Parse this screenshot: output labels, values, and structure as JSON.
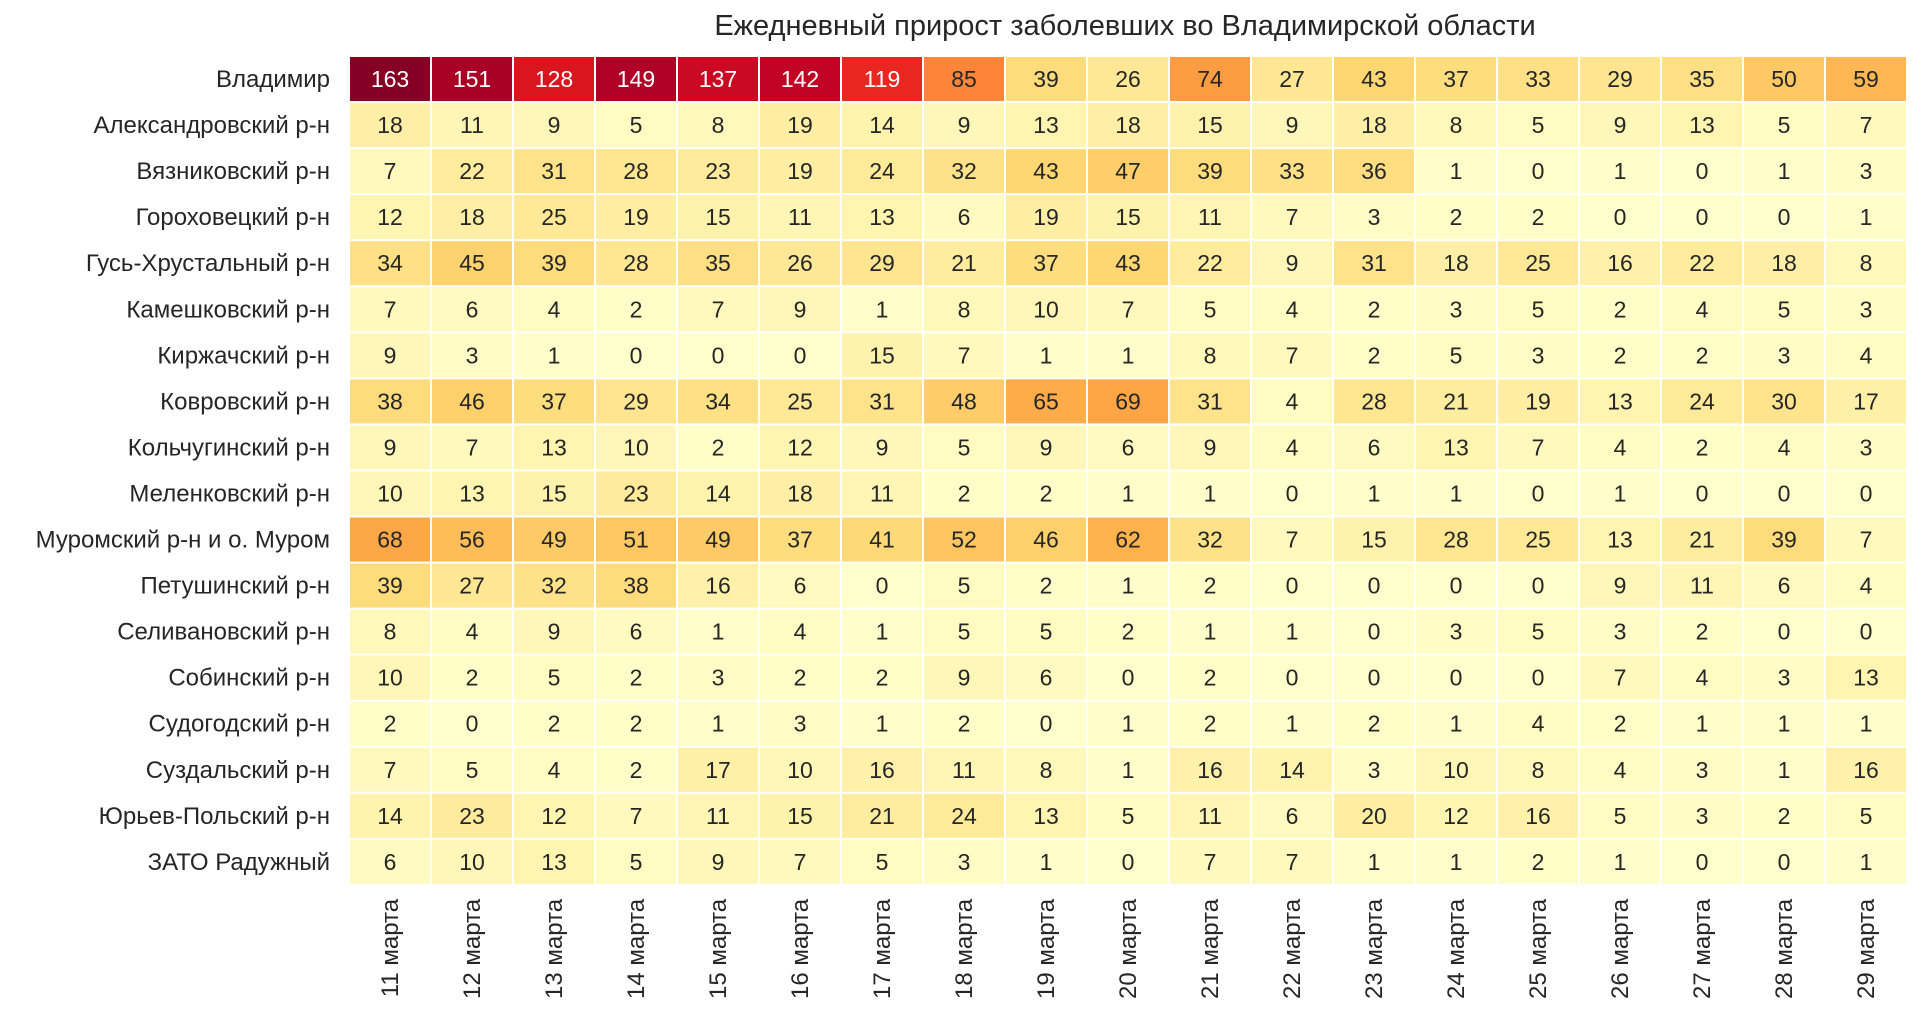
{
  "chart_data": {
    "type": "heatmap",
    "title": "Ежедневный прирост заболевших во Владимирской области",
    "xlabel": "",
    "ylabel": "",
    "colormap": "YlOrRd",
    "value_range": [
      0,
      165
    ],
    "columns": [
      "11 марта",
      "12 марта",
      "13 марта",
      "14 марта",
      "15 марта",
      "16 марта",
      "17 марта",
      "18 марта",
      "19 марта",
      "20 марта",
      "21 марта",
      "22 марта",
      "23 марта",
      "24 марта",
      "25 марта",
      "26 марта",
      "27 марта",
      "28 марта",
      "29 марта"
    ],
    "rows": [
      "Владимир",
      "Александровский р-н",
      "Вязниковский р-н",
      "Гороховецкий р-н",
      "Гусь-Хрустальный р-н",
      "Камешковский р-н",
      "Киржачский р-н",
      "Ковровский р-н",
      "Кольчугинский р-н",
      "Меленковский р-н",
      "Муромский р-н и о. Муром",
      "Петушинский р-н",
      "Селивановский р-н",
      "Собинский р-н",
      "Судогодский р-н",
      "Суздальский р-н",
      "Юрьев-Польский р-н",
      "ЗАТО Радужный"
    ],
    "values": [
      [
        163,
        151,
        128,
        149,
        137,
        142,
        119,
        85,
        39,
        26,
        74,
        27,
        43,
        37,
        33,
        29,
        35,
        50,
        59
      ],
      [
        18,
        11,
        9,
        5,
        8,
        19,
        14,
        9,
        13,
        18,
        15,
        9,
        18,
        8,
        5,
        9,
        13,
        5,
        7
      ],
      [
        7,
        22,
        31,
        28,
        23,
        19,
        24,
        32,
        43,
        47,
        39,
        33,
        36,
        1,
        0,
        1,
        0,
        1,
        3
      ],
      [
        12,
        18,
        25,
        19,
        15,
        11,
        13,
        6,
        19,
        15,
        11,
        7,
        3,
        2,
        2,
        0,
        0,
        0,
        1
      ],
      [
        34,
        45,
        39,
        28,
        35,
        26,
        29,
        21,
        37,
        43,
        22,
        9,
        31,
        18,
        25,
        16,
        22,
        18,
        8
      ],
      [
        7,
        6,
        4,
        2,
        7,
        9,
        1,
        8,
        10,
        7,
        5,
        4,
        2,
        3,
        5,
        2,
        4,
        5,
        3
      ],
      [
        9,
        3,
        1,
        0,
        0,
        0,
        15,
        7,
        1,
        1,
        8,
        7,
        2,
        5,
        3,
        2,
        2,
        3,
        4
      ],
      [
        38,
        46,
        37,
        29,
        34,
        25,
        31,
        48,
        65,
        69,
        31,
        4,
        28,
        21,
        19,
        13,
        24,
        30,
        17
      ],
      [
        9,
        7,
        13,
        10,
        2,
        12,
        9,
        5,
        9,
        6,
        9,
        4,
        6,
        13,
        7,
        4,
        2,
        4,
        3
      ],
      [
        10,
        13,
        15,
        23,
        14,
        18,
        11,
        2,
        2,
        1,
        1,
        0,
        1,
        1,
        0,
        1,
        0,
        0,
        0
      ],
      [
        68,
        56,
        49,
        51,
        49,
        37,
        41,
        52,
        46,
        62,
        32,
        7,
        15,
        28,
        25,
        13,
        21,
        39,
        7
      ],
      [
        39,
        27,
        32,
        38,
        16,
        6,
        0,
        5,
        2,
        1,
        2,
        0,
        0,
        0,
        0,
        9,
        11,
        6,
        4
      ],
      [
        8,
        4,
        9,
        6,
        1,
        4,
        1,
        5,
        5,
        2,
        1,
        1,
        0,
        3,
        5,
        3,
        2,
        0,
        0
      ],
      [
        10,
        2,
        5,
        2,
        3,
        2,
        2,
        9,
        6,
        0,
        2,
        0,
        0,
        0,
        0,
        7,
        4,
        3,
        13
      ],
      [
        2,
        0,
        2,
        2,
        1,
        3,
        1,
        2,
        0,
        1,
        2,
        1,
        2,
        1,
        4,
        2,
        1,
        1,
        1
      ],
      [
        7,
        5,
        4,
        2,
        17,
        10,
        16,
        11,
        8,
        1,
        16,
        14,
        3,
        10,
        8,
        4,
        3,
        1,
        16
      ],
      [
        14,
        23,
        12,
        7,
        11,
        15,
        21,
        24,
        13,
        5,
        11,
        6,
        20,
        12,
        16,
        5,
        3,
        2,
        5
      ],
      [
        6,
        10,
        13,
        5,
        9,
        7,
        5,
        3,
        1,
        0,
        7,
        7,
        1,
        1,
        2,
        1,
        0,
        0,
        1
      ]
    ]
  }
}
